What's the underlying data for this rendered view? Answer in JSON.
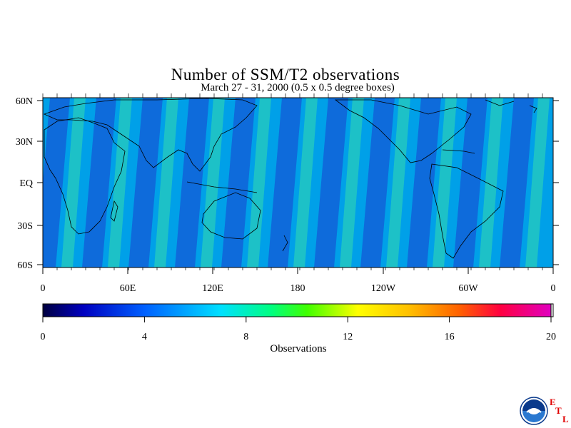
{
  "title": "Number of SSM/T2 observations",
  "subtitle": "March 27 - 31, 2000 (0.5 x 0.5 degree boxes)",
  "lat_labels": [
    "60N",
    "30N",
    "EQ",
    "30S",
    "60S"
  ],
  "lon_labels": [
    "0",
    "60E",
    "120E",
    "180",
    "120W",
    "60W",
    "0"
  ],
  "colorbar": {
    "label": "Observations",
    "ticks": [
      "0",
      "4",
      "8",
      "12",
      "16",
      "20"
    ],
    "range": [
      0,
      20
    ],
    "colors": [
      "#000040",
      "#0000c0",
      "#0060ff",
      "#00c0ff",
      "#00ffff",
      "#00ff60",
      "#40ff00",
      "#ffff00",
      "#ffc000",
      "#ff8000",
      "#ff2000",
      "#ff0080",
      "#e000c0"
    ]
  },
  "logo": {
    "name": "NOAA",
    "lab": [
      "E",
      "T",
      "L"
    ]
  },
  "palette": {
    "background": "#00a0e0"
  }
}
